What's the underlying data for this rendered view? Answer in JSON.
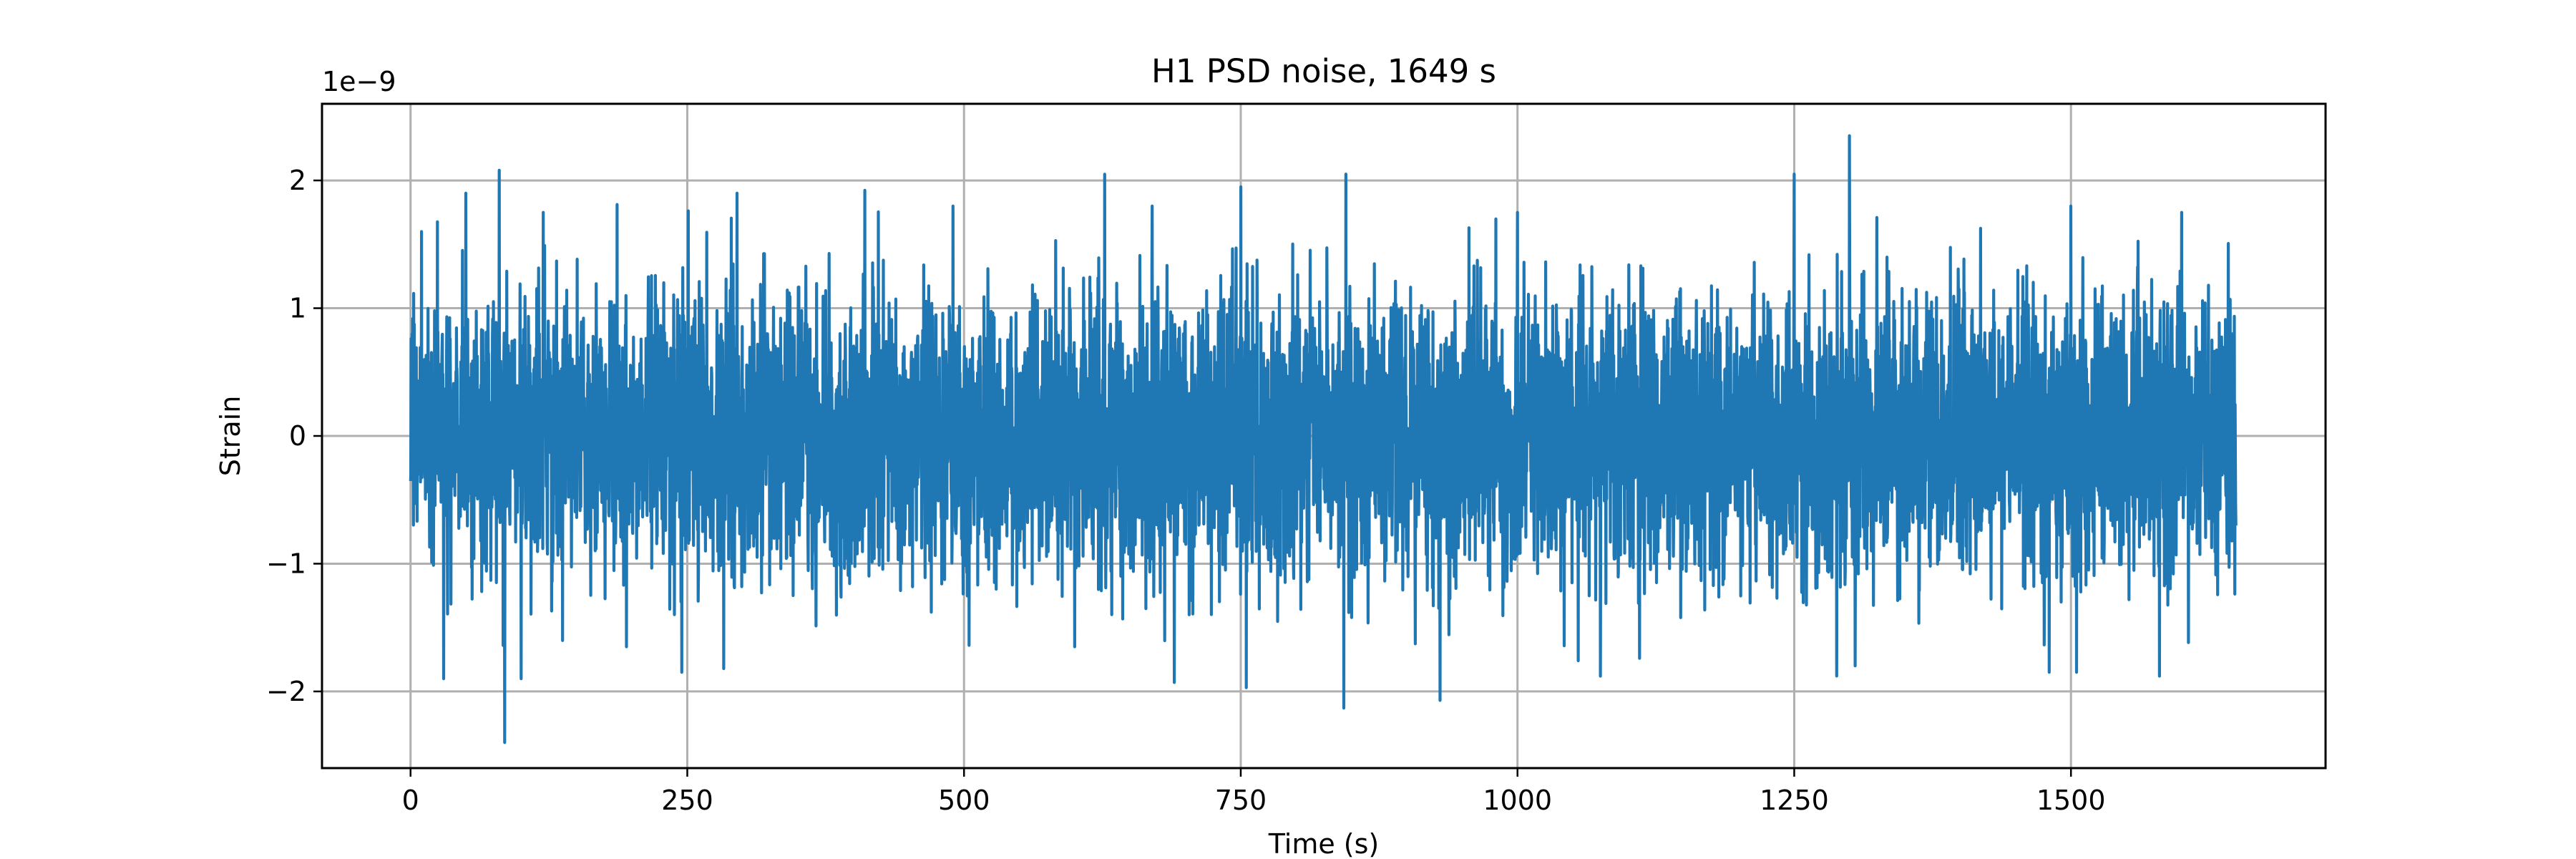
{
  "chart_data": {
    "type": "line",
    "title": "H1 PSD noise, 1649 s",
    "xlabel": "Time (s)",
    "ylabel": "Strain",
    "y_offset_label": "1e−9",
    "y_scale": 1e-09,
    "xlim": [
      -80,
      1730
    ],
    "ylim": [
      -2.6e-09,
      2.6e-09
    ],
    "x_ticks": [
      {
        "value": 0,
        "label": "0"
      },
      {
        "value": 250,
        "label": "250"
      },
      {
        "value": 500,
        "label": "500"
      },
      {
        "value": 750,
        "label": "750"
      },
      {
        "value": 1000,
        "label": "1000"
      },
      {
        "value": 1250,
        "label": "1250"
      },
      {
        "value": 1500,
        "label": "1500"
      }
    ],
    "y_ticks": [
      {
        "value": -2e-09,
        "label": "−2"
      },
      {
        "value": -1e-09,
        "label": "−1"
      },
      {
        "value": 0,
        "label": "0"
      },
      {
        "value": 1e-09,
        "label": "1"
      },
      {
        "value": 2e-09,
        "label": "2"
      }
    ],
    "grid": true,
    "series": [
      {
        "color": "#1f77b4",
        "duration_s": 1649,
        "typical_band": [
          -1.2e-09,
          1.2e-09
        ],
        "peaks": [
          {
            "x": 10,
            "y": 1.6e-09
          },
          {
            "x": 30,
            "y": -1.9e-09
          },
          {
            "x": 50,
            "y": 1.9e-09
          },
          {
            "x": 80,
            "y": 2.08e-09
          },
          {
            "x": 85,
            "y": -2.4e-09
          },
          {
            "x": 100,
            "y": -1.9e-09
          },
          {
            "x": 120,
            "y": 1.75e-09
          },
          {
            "x": 195,
            "y": -1.65e-09
          },
          {
            "x": 295,
            "y": 1.9e-09
          },
          {
            "x": 245,
            "y": -1.85e-09
          },
          {
            "x": 490,
            "y": 1.8e-09
          },
          {
            "x": 600,
            "y": -1.65e-09
          },
          {
            "x": 670,
            "y": 1.8e-09
          },
          {
            "x": 690,
            "y": -1.93e-09
          },
          {
            "x": 750,
            "y": 1.95e-09
          },
          {
            "x": 755,
            "y": -1.97e-09
          },
          {
            "x": 845,
            "y": 2.05e-09
          },
          {
            "x": 843,
            "y": -2.13e-09
          },
          {
            "x": 930,
            "y": -2.07e-09
          },
          {
            "x": 1000,
            "y": 1.75e-09
          },
          {
            "x": 1075,
            "y": -1.88e-09
          },
          {
            "x": 1250,
            "y": 2.05e-09
          },
          {
            "x": 1300,
            "y": 2.35e-09
          },
          {
            "x": 1305,
            "y": -1.8e-09
          },
          {
            "x": 1500,
            "y": 1.8e-09
          },
          {
            "x": 1505,
            "y": -1.85e-09
          },
          {
            "x": 1580,
            "y": -1.88e-09
          },
          {
            "x": 1600,
            "y": 1.75e-09
          }
        ]
      }
    ]
  }
}
